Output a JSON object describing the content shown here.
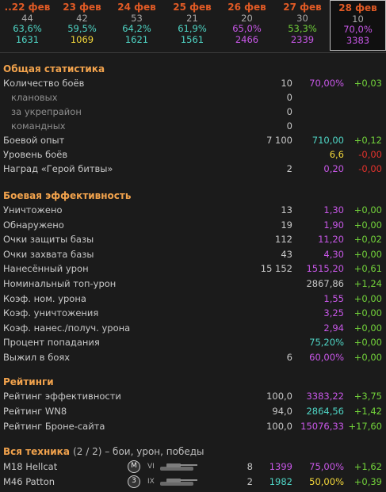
{
  "days": [
    {
      "name": "..22 фев",
      "battles": "44",
      "winrate": "63,6%",
      "rating": "1631",
      "wr_color": "#4fd6c6",
      "rt_color": "#4fd6c6"
    },
    {
      "name": "23 фев",
      "battles": "42",
      "winrate": "59,5%",
      "rating": "1069",
      "wr_color": "#4fd6c6",
      "rt_color": "#f4d83a"
    },
    {
      "name": "24 фев",
      "battles": "53",
      "winrate": "64,2%",
      "rating": "1621",
      "wr_color": "#4fd6c6",
      "rt_color": "#4fd6c6"
    },
    {
      "name": "25 фев",
      "battles": "21",
      "winrate": "61,9%",
      "rating": "1561",
      "wr_color": "#4fd6c6",
      "rt_color": "#4fd6c6"
    },
    {
      "name": "26 фев",
      "battles": "20",
      "winrate": "65,0%",
      "rating": "2466",
      "wr_color": "#c857e8",
      "rt_color": "#c857e8"
    },
    {
      "name": "27 фев",
      "battles": "30",
      "winrate": "53,3%",
      "rating": "2339",
      "wr_color": "#72d23a",
      "rt_color": "#c857e8"
    },
    {
      "name": "28 фев",
      "battles": "10",
      "winrate": "70,0%",
      "rating": "3383",
      "wr_color": "#c857e8",
      "rt_color": "#c857e8",
      "current": true
    }
  ],
  "sections": {
    "general": "Общая статистика",
    "efficiency": "Боевая эффективность",
    "ratings": "Рейтинги",
    "vehicles": "Вся техника",
    "vehicles_count": "(2 / 2)",
    "vehicles_note": "– бои, урон, победы"
  },
  "general": [
    {
      "label": "Количество боёв",
      "value": "10",
      "avg": "70,00%",
      "avg_color": "c-purple",
      "delta": "+0,03",
      "delta_color": "c-green"
    },
    {
      "label": "клановых",
      "value": "0",
      "sub": true
    },
    {
      "label": "за укрепрайон",
      "value": "0",
      "sub": true
    },
    {
      "label": "командных",
      "value": "0",
      "sub": true
    },
    {
      "label": "Боевой опыт",
      "value": "7 100",
      "avg": "710,00",
      "avg_color": "c-cyan",
      "delta": "+0,12",
      "delta_color": "c-green"
    },
    {
      "label": "Уровень боёв",
      "value": "",
      "avg": "6,6",
      "avg_color": "c-yellow",
      "delta": "-0,00",
      "delta_color": "c-red"
    },
    {
      "label": "Наград «Герой битвы»",
      "value": "2",
      "avg": "0,20",
      "avg_color": "c-purple",
      "delta": "-0,00",
      "delta_color": "c-red"
    }
  ],
  "efficiency": [
    {
      "label": "Уничтожено",
      "value": "13",
      "avg": "1,30",
      "avg_color": "c-purple",
      "delta": "+0,00",
      "delta_color": "c-green"
    },
    {
      "label": "Обнаружено",
      "value": "19",
      "avg": "1,90",
      "avg_color": "c-purple",
      "delta": "+0,00",
      "delta_color": "c-green"
    },
    {
      "label": "Очки защиты базы",
      "value": "112",
      "avg": "11,20",
      "avg_color": "c-purple",
      "delta": "+0,02",
      "delta_color": "c-green"
    },
    {
      "label": "Очки захвата базы",
      "value": "43",
      "avg": "4,30",
      "avg_color": "c-purple",
      "delta": "+0,00",
      "delta_color": "c-green"
    },
    {
      "label": "Нанесённый урон",
      "value": "15 152",
      "avg": "1515,20",
      "avg_color": "c-purple",
      "delta": "+0,61",
      "delta_color": "c-green"
    },
    {
      "label": "Номинальный топ-урон",
      "value": "",
      "avg": "2867,86",
      "avg_color": "c-gray",
      "delta": "+1,24",
      "delta_color": "c-green"
    },
    {
      "label": "Коэф. ном. урона",
      "value": "",
      "avg": "1,55",
      "avg_color": "c-purple",
      "delta": "+0,00",
      "delta_color": "c-green"
    },
    {
      "label": "Коэф. уничтожения",
      "value": "",
      "avg": "3,25",
      "avg_color": "c-purple",
      "delta": "+0,00",
      "delta_color": "c-green"
    },
    {
      "label": "Коэф. нанес./получ. урона",
      "value": "",
      "avg": "2,94",
      "avg_color": "c-purple",
      "delta": "+0,00",
      "delta_color": "c-green"
    },
    {
      "label": "Процент попадания",
      "value": "",
      "avg": "75,20%",
      "avg_color": "c-cyan",
      "delta": "+0,00",
      "delta_color": "c-green"
    },
    {
      "label": "Выжил в боях",
      "value": "6",
      "avg": "60,00%",
      "avg_color": "c-purple",
      "delta": "+0,00",
      "delta_color": "c-green"
    }
  ],
  "ratings": [
    {
      "label": "Рейтинг эффективности",
      "value": "100,0",
      "avg": "3383,22",
      "avg_color": "c-purple",
      "delta": "+3,75",
      "delta_color": "c-green"
    },
    {
      "label": "Рейтинг WN8",
      "value": "94,0",
      "avg": "2864,56",
      "avg_color": "c-cyan",
      "delta": "+1,42",
      "delta_color": "c-green"
    },
    {
      "label": "Рейтинг Броне-сайта",
      "value": "100,0",
      "avg": "15076,33",
      "avg_color": "c-purple",
      "delta": "+17,60",
      "delta_color": "c-green"
    }
  ],
  "vehicles": [
    {
      "name": "M18 Hellcat",
      "badge": "M",
      "tier": "VI",
      "battles": "8",
      "damage": "1399",
      "damage_color": "c-purple",
      "winrate": "75,00%",
      "winrate_color": "c-purple",
      "delta": "+1,62",
      "delta_color": "c-green"
    },
    {
      "name": "M46 Patton",
      "badge": "3",
      "tier": "IX",
      "battles": "2",
      "damage": "1982",
      "damage_color": "c-cyan",
      "winrate": "50,00%",
      "winrate_color": "c-yellow",
      "delta": "+0,39",
      "delta_color": "c-green"
    }
  ]
}
